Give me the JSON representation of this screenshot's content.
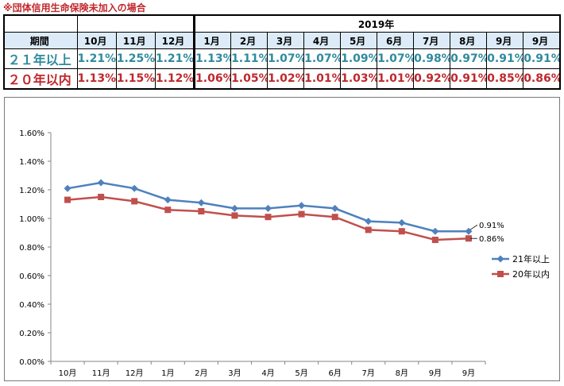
{
  "note": "※団体信用生命保険未加入の場合",
  "table": {
    "year_label": "2019年",
    "period_label": "期間",
    "months": [
      "10月",
      "11月",
      "12月",
      "1月",
      "2月",
      "3月",
      "4月",
      "5月",
      "6月",
      "7月",
      "8月",
      "9月",
      "9月"
    ],
    "rows": [
      {
        "label": "２１年以上",
        "values": [
          "1.21%",
          "1.25%",
          "1.21%",
          "1.13%",
          "1.11%",
          "1.07%",
          "1.07%",
          "1.09%",
          "1.07%",
          "0.98%",
          "0.97%",
          "0.91%",
          "0.91%"
        ]
      },
      {
        "label": "２０年以内",
        "values": [
          "1.13%",
          "1.15%",
          "1.12%",
          "1.06%",
          "1.05%",
          "1.02%",
          "1.01%",
          "1.03%",
          "1.01%",
          "0.92%",
          "0.91%",
          "0.85%",
          "0.86%"
        ]
      }
    ]
  },
  "chart_data": {
    "type": "line",
    "categories": [
      "10月",
      "11月",
      "12月",
      "1月",
      "2月",
      "3月",
      "4月",
      "5月",
      "6月",
      "7月",
      "8月",
      "9月",
      "9月"
    ],
    "series": [
      {
        "name": "21年以上",
        "values": [
          1.21,
          1.25,
          1.21,
          1.13,
          1.11,
          1.07,
          1.07,
          1.09,
          1.07,
          0.98,
          0.97,
          0.91,
          0.91
        ],
        "color": "#4f81bd",
        "marker": "diamond"
      },
      {
        "name": "20年以内",
        "values": [
          1.13,
          1.15,
          1.12,
          1.06,
          1.05,
          1.02,
          1.01,
          1.03,
          1.01,
          0.92,
          0.91,
          0.85,
          0.86
        ],
        "color": "#c0504d",
        "marker": "square"
      }
    ],
    "y_ticks": [
      "0.00%",
      "0.20%",
      "0.40%",
      "0.60%",
      "0.80%",
      "1.00%",
      "1.20%",
      "1.40%",
      "1.60%"
    ],
    "ylim": [
      0,
      1.6
    ],
    "grid": false,
    "legend": "right",
    "annotations": [
      "0.91%",
      "0.86%"
    ]
  }
}
